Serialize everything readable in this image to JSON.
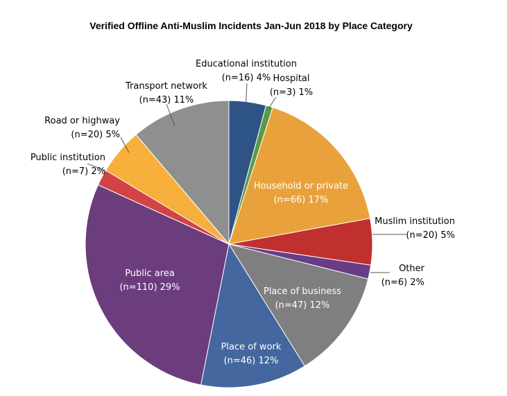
{
  "chart_data": {
    "type": "pie",
    "title": "Verified Offline Anti-Muslim Incidents Jan-Jun 2018 by Place Category",
    "legend": "none",
    "slices": [
      {
        "label": "Educational institution",
        "value": 16,
        "count_text": "(n=16)",
        "percent_text": "4%",
        "color": "#2e5387"
      },
      {
        "label": "Hospital",
        "value": 3,
        "count_text": "(n=3)",
        "percent_text": "1%",
        "color": "#5a9a47"
      },
      {
        "label": "Household or private",
        "value": 66,
        "count_text": "(n=66)",
        "percent_text": "17%",
        "color": "#e9a23b"
      },
      {
        "label": "Muslim institution",
        "value": 20,
        "count_text": "(n=20)",
        "percent_text": "5%",
        "color": "#c0302f"
      },
      {
        "label": "Other",
        "value": 6,
        "count_text": "(n=6)",
        "percent_text": "2%",
        "color": "#6a3c86"
      },
      {
        "label": "Place of business",
        "value": 47,
        "count_text": "(n=47)",
        "percent_text": "12%",
        "color": "#7f7f7f"
      },
      {
        "label": "Place of work",
        "value": 46,
        "count_text": "(n=46)",
        "percent_text": "12%",
        "color": "#43679e"
      },
      {
        "label": "Public area",
        "value": 110,
        "count_text": "(n=110)",
        "percent_text": "29%",
        "color": "#6b3d7d"
      },
      {
        "label": "Public institution",
        "value": 7,
        "count_text": "(n=7)",
        "percent_text": "2%",
        "color": "#d24444"
      },
      {
        "label": "Road or highway",
        "value": 20,
        "count_text": "(n=20)",
        "percent_text": "5%",
        "color": "#f7b03c"
      },
      {
        "label": "Transport network",
        "value": 43,
        "count_text": "(n=43)",
        "percent_text": "11%",
        "color": "#8f8f8f"
      }
    ]
  }
}
